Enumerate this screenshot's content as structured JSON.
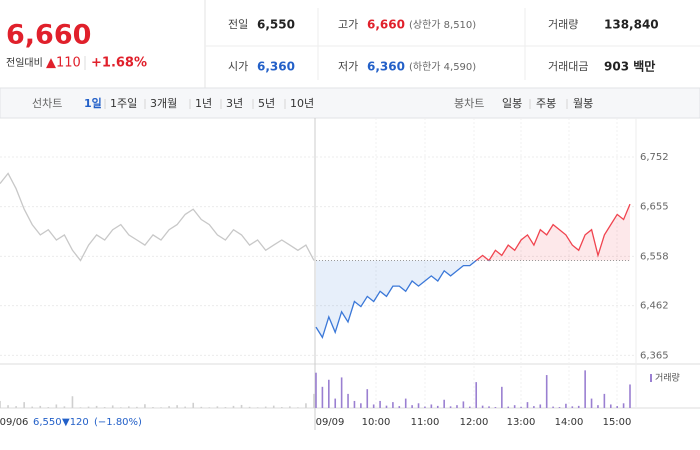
{
  "header": {
    "price": "6,660",
    "change_label": "전일대비",
    "change": "▲110",
    "change_pct": "+1.68%",
    "stats": [
      {
        "label": "전일",
        "value": "6,550"
      },
      {
        "label": "고가",
        "value": "6,660",
        "note": "(상한가 8,510)"
      },
      {
        "label": "거래량",
        "value": "138,840"
      },
      {
        "label": "시가",
        "value": "6,360"
      },
      {
        "label": "저가",
        "value": "6,360",
        "note": "(하한가 4,590)"
      },
      {
        "label": "거래대금",
        "value": "903 백만"
      }
    ]
  },
  "tabs": {
    "line_label": "선차트",
    "line": [
      "1일",
      "1주일",
      "3개월",
      "1년",
      "3년",
      "5년",
      "10년"
    ],
    "candle_label": "봉차트",
    "candle": [
      "일봉",
      "주봉",
      "월봉"
    ]
  },
  "chart_data": {
    "type": "line",
    "ylim": [
      6352,
      6828
    ],
    "yticks": [
      {
        "value": 6752,
        "label": "6,752"
      },
      {
        "value": 6655,
        "label": "6,655"
      },
      {
        "value": 6558,
        "label": "6,558"
      },
      {
        "value": 6462,
        "label": "6,462"
      },
      {
        "value": 6365,
        "label": "6,365"
      }
    ],
    "base": 6550,
    "up_color": "#f0444f",
    "down_color": "#3b78d8",
    "x_labels": [
      "09/06",
      "09/09",
      "10:00",
      "11:00",
      "12:00",
      "13:00",
      "14:00",
      "15:00"
    ],
    "series": [
      {
        "color": "#c8c8c8",
        "volume_color": "#cfcfcf",
        "values": [
          6700,
          6720,
          6690,
          6650,
          6620,
          6600,
          6610,
          6590,
          6600,
          6570,
          6550,
          6580,
          6600,
          6590,
          6610,
          6620,
          6600,
          6590,
          6580,
          6600,
          6590,
          6610,
          6620,
          6640,
          6650,
          6630,
          6620,
          6600,
          6590,
          6610,
          6600,
          6580,
          6590,
          6570,
          6580,
          6590,
          6580,
          6570,
          6580,
          6550
        ],
        "volumes": [
          3000,
          1200,
          800,
          2500,
          600,
          900,
          400,
          1500,
          700,
          5000,
          300,
          600,
          900,
          400,
          1100,
          300,
          700,
          500,
          1600,
          400,
          300,
          800,
          1200,
          600,
          2200,
          500,
          300,
          700,
          400,
          900,
          1300,
          500,
          300,
          600,
          1000,
          400,
          700,
          300,
          2000,
          6000
        ]
      },
      {
        "color": null,
        "volume_color": "#9a7fd1",
        "values": [
          6420,
          6400,
          6440,
          6410,
          6450,
          6430,
          6470,
          6460,
          6480,
          6470,
          6490,
          6480,
          6500,
          6500,
          6490,
          6510,
          6500,
          6510,
          6520,
          6510,
          6530,
          6520,
          6530,
          6540,
          6540,
          6550,
          6560,
          6550,
          6570,
          6560,
          6580,
          6570,
          6590,
          6600,
          6580,
          6610,
          6600,
          6620,
          6610,
          6600,
          6580,
          6570,
          6600,
          6610,
          6560,
          6600,
          6620,
          6640,
          6630,
          6660
        ],
        "volumes": [
          15000,
          9000,
          12000,
          4000,
          13000,
          6000,
          3000,
          2000,
          8000,
          1500,
          3000,
          1000,
          2500,
          800,
          4000,
          1200,
          2000,
          600,
          1500,
          900,
          3500,
          700,
          1200,
          2800,
          600,
          11000,
          1000,
          700,
          400,
          9000,
          600,
          1200,
          500,
          2500,
          800,
          1500,
          14000,
          600,
          400,
          1800,
          700,
          900,
          16000,
          4000,
          1200,
          6000,
          1500,
          800,
          2000,
          10000
        ]
      }
    ],
    "volume_ylim": [
      0,
      17000
    ],
    "volume_label": "거래량",
    "bottom_info": {
      "price": "6,550",
      "change": "▼120",
      "change_pct": "(−1.80%)"
    }
  }
}
